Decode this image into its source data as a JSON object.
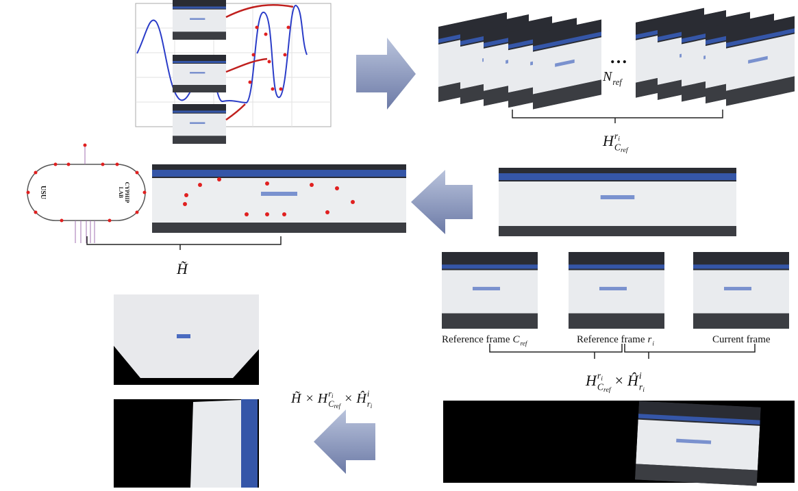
{
  "stack": {
    "ellipsis": "…",
    "n_ref": {
      "symbol": "N",
      "subscript": "ref"
    }
  },
  "h_ref": {
    "symbol": "H",
    "superscript": "r",
    "superscript_index": "i",
    "subscript": "C",
    "subscript_index": "ref"
  },
  "rink_labels": {
    "left": "USU",
    "right_1": "CYPHIP",
    "right_2": "LAB"
  },
  "h_tilde": {
    "symbol": "H̃"
  },
  "frames": [
    {
      "text": "Reference frame",
      "symbol": "C",
      "subscript": "ref"
    },
    {
      "text": "Reference frame",
      "symbol": "r",
      "subscript": "i"
    },
    {
      "text": "Current frame"
    }
  ],
  "product_right": {
    "operator": "×",
    "factors": [
      {
        "symbol": "H",
        "superscript": "r",
        "superscript_index": "i",
        "subscript": "C",
        "subscript_index": "ref"
      },
      {
        "symbol": "Ĥ",
        "superscript": "i",
        "subscript": "r",
        "subscript_index": "i"
      }
    ]
  },
  "product_left": {
    "operator": "×",
    "factors": [
      {
        "symbol": "H̃"
      },
      {
        "symbol": "H",
        "superscript": "r",
        "superscript_index": "i",
        "subscript": "C",
        "subscript_index": "ref"
      },
      {
        "symbol": "Ĥ",
        "superscript": "i",
        "subscript": "r",
        "subscript_index": "i"
      }
    ]
  }
}
